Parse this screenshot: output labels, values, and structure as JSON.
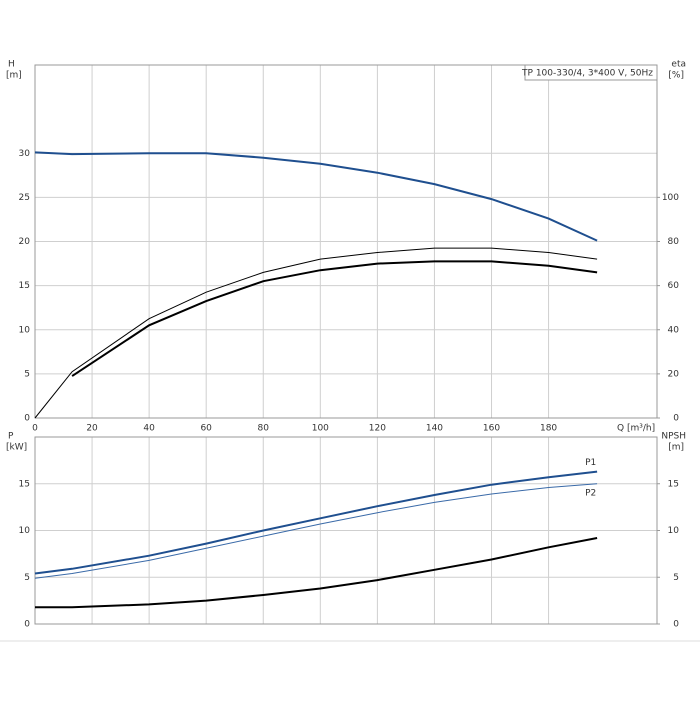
{
  "chart_data": [
    {
      "type": "line",
      "title": "TP 100-330/4, 3*400 V, 50Hz",
      "ylabel": "H",
      "yunit": "[m]",
      "y2label": "eta",
      "y2unit": "[%]",
      "xlabel": "Q [m³/h]",
      "x": [
        0,
        13,
        40,
        60,
        80,
        100,
        120,
        140,
        160,
        180,
        197
      ],
      "xlim": [
        0,
        218
      ],
      "xticks": [
        0,
        20,
        40,
        60,
        80,
        100,
        120,
        140,
        160,
        180
      ],
      "show_xtick_labels": true,
      "ylim": [
        0,
        40
      ],
      "yticks": [
        0,
        5,
        10,
        15,
        20,
        25,
        30
      ],
      "y2lim": [
        0,
        160
      ],
      "y2ticks": [
        0,
        20,
        40,
        60,
        80,
        100
      ],
      "grid": true,
      "series": [
        {
          "color": "#1f4f8f",
          "width": 2,
          "values": [
            30.1,
            29.9,
            30.0,
            30.0,
            29.5,
            28.8,
            27.8,
            26.5,
            24.8,
            22.6,
            20.1
          ]
        },
        {
          "color": "#000000",
          "width": 1,
          "axis": "y2",
          "values": [
            0,
            21,
            45,
            57,
            66,
            72,
            75,
            77,
            77,
            75,
            72
          ]
        },
        {
          "color": "#000000",
          "width": 2,
          "axis": "y2",
          "values": [
            null,
            19,
            42,
            53,
            62,
            67,
            70,
            71,
            71,
            69,
            66
          ]
        }
      ]
    },
    {
      "type": "line",
      "ylabel": "P",
      "yunit": "[kW]",
      "y2label": "NPSH",
      "y2unit": "[m]",
      "x": [
        0,
        13,
        40,
        60,
        80,
        100,
        120,
        140,
        160,
        180,
        197
      ],
      "xlim": [
        0,
        218
      ],
      "xticks": [
        0,
        20,
        40,
        60,
        80,
        100,
        120,
        140,
        160,
        180
      ],
      "show_xtick_labels": false,
      "ylim": [
        0,
        20
      ],
      "yticks": [
        0,
        5,
        10,
        15
      ],
      "y2lim": [
        0,
        20
      ],
      "y2ticks": [
        0,
        5,
        10,
        15
      ],
      "grid": true,
      "series": [
        {
          "name": "P1",
          "color": "#1f4f8f",
          "width": 2,
          "values": [
            5.4,
            5.9,
            7.3,
            8.6,
            10.0,
            11.3,
            12.6,
            13.8,
            14.9,
            15.7,
            16.3
          ]
        },
        {
          "name": "P2",
          "color": "#3a6aa8",
          "width": 1,
          "values": [
            4.9,
            5.4,
            6.8,
            8.1,
            9.4,
            10.7,
            11.9,
            13.0,
            13.9,
            14.6,
            15.0
          ]
        },
        {
          "color": "#000000",
          "width": 2,
          "axis": "y2",
          "values": [
            1.8,
            1.8,
            2.1,
            2.5,
            3.1,
            3.8,
            4.7,
            5.8,
            6.9,
            8.2,
            9.2
          ]
        }
      ]
    }
  ]
}
